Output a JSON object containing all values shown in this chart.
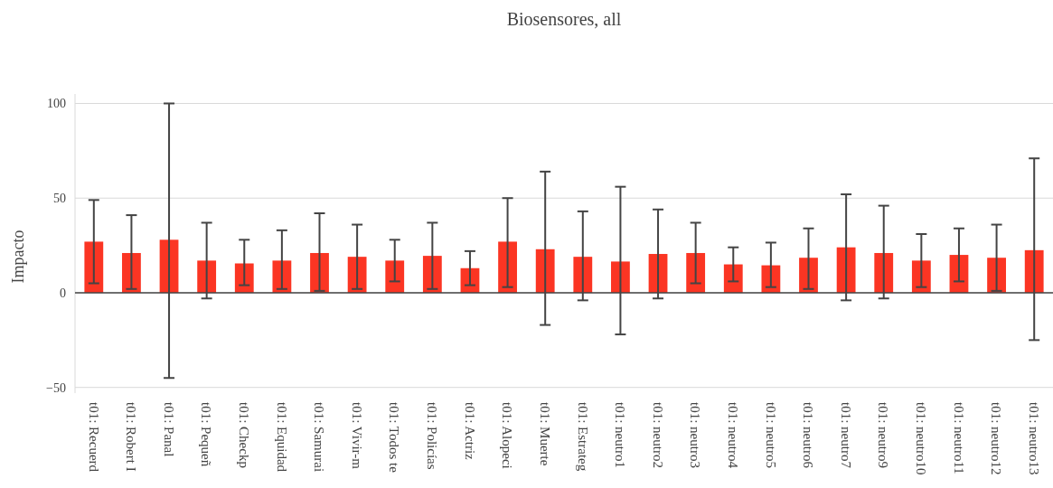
{
  "chart_data": {
    "type": "bar",
    "title": "Biosensores, all",
    "ylabel": "Impacto",
    "categories": [
      "t01: Recuerd",
      "t01: Robert I",
      "t01: Panal",
      "t01: Pequeñ",
      "t01: Checkp",
      "t01: Equidad",
      "t01: Samurai",
      "t01: Vivir-m",
      "t01: Todos te",
      "t01: Policías",
      "t01: Actriz",
      "t01: Alopeci",
      "t01: Muerte",
      "t01: Estrateg",
      "t01: neutro1",
      "t01: neutro2",
      "t01: neutro3",
      "t01: neutro4",
      "t01: neutro5",
      "t01: neutro6",
      "t01: neutro7",
      "t01: neutro9",
      "t01: neutro10",
      "t01: neutro11",
      "t01: neutro12",
      "t01: neutro13"
    ],
    "values": [
      27,
      21,
      28,
      17,
      15.5,
      17,
      21,
      19,
      17,
      19.5,
      13,
      27,
      23,
      19,
      16.5,
      20.5,
      21,
      15,
      14.5,
      18.5,
      24,
      21,
      17,
      20,
      18.5,
      22.5
    ],
    "errors": [
      [
        5,
        49
      ],
      [
        2,
        41
      ],
      [
        -45,
        100
      ],
      [
        -3,
        37
      ],
      [
        4,
        28
      ],
      [
        2,
        33
      ],
      [
        1,
        42
      ],
      [
        2,
        36
      ],
      [
        6,
        28
      ],
      [
        2,
        37
      ],
      [
        4,
        22
      ],
      [
        3,
        50
      ],
      [
        -17,
        64
      ],
      [
        -4,
        43
      ],
      [
        -22,
        56
      ],
      [
        -3,
        44
      ],
      [
        5,
        37
      ],
      [
        6,
        24
      ],
      [
        3,
        26.5
      ],
      [
        2,
        34
      ],
      [
        -4,
        52
      ],
      [
        -3,
        46
      ],
      [
        3,
        31
      ],
      [
        6,
        34
      ],
      [
        1,
        36
      ],
      [
        -25,
        71
      ]
    ],
    "color": "#fb3523",
    "ylim": [
      -53,
      105
    ],
    "yticks": [
      -50,
      0,
      50,
      100
    ],
    "grid": "y"
  }
}
